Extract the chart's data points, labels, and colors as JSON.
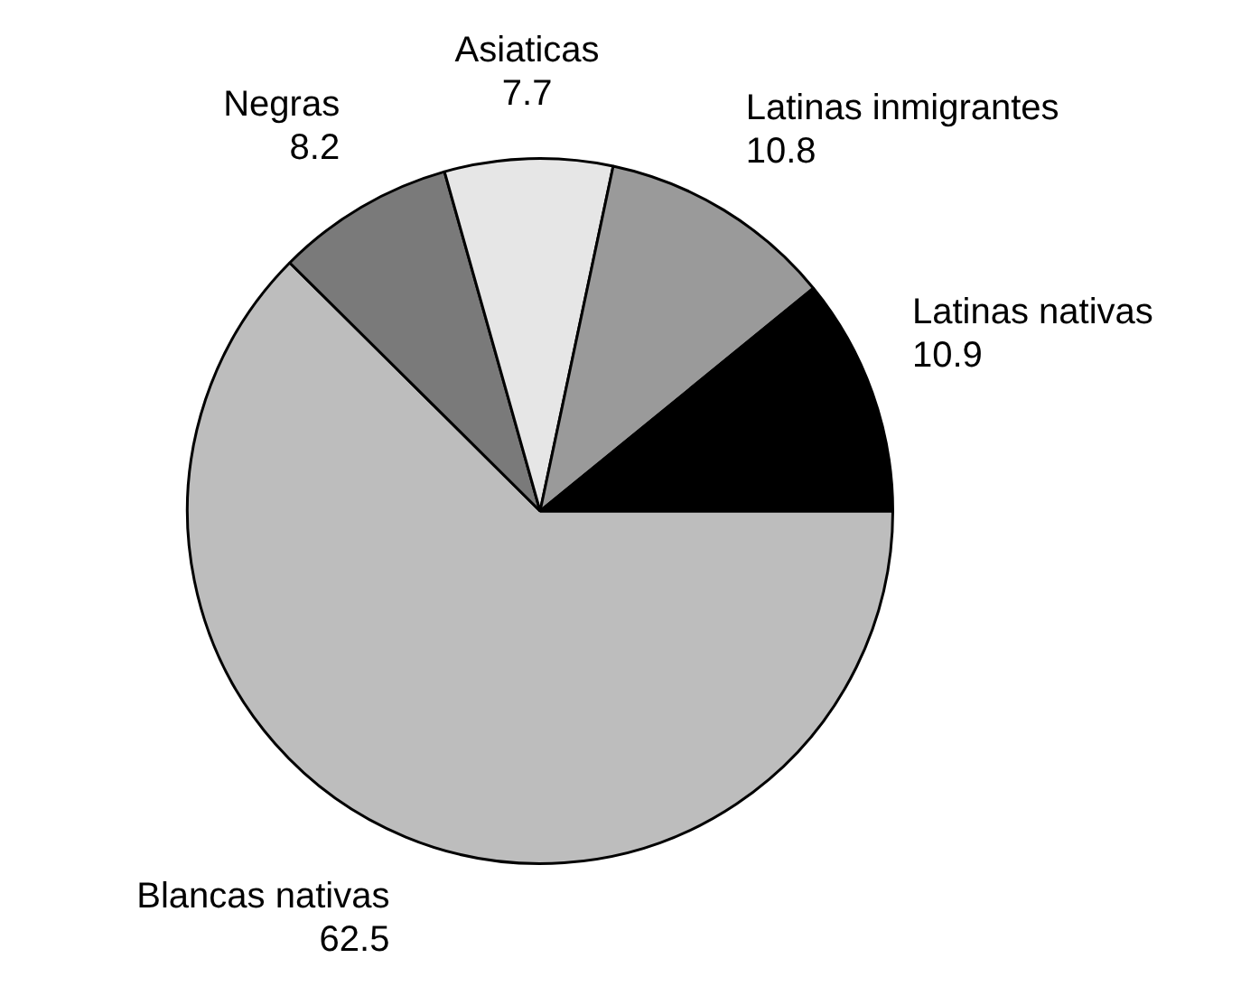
{
  "chart_data": {
    "type": "pie",
    "categories": [
      "Blancas nativas",
      "Negras",
      "Asiaticas",
      "Latinas inmigrantes",
      "Latinas nativas"
    ],
    "values": [
      62.5,
      8.2,
      7.7,
      10.8,
      10.9
    ],
    "colors": [
      "#bdbdbd",
      "#7a7a7a",
      "#e6e6e6",
      "#9a9a9a",
      "#000000"
    ],
    "data_labels": true,
    "legend": false
  }
}
